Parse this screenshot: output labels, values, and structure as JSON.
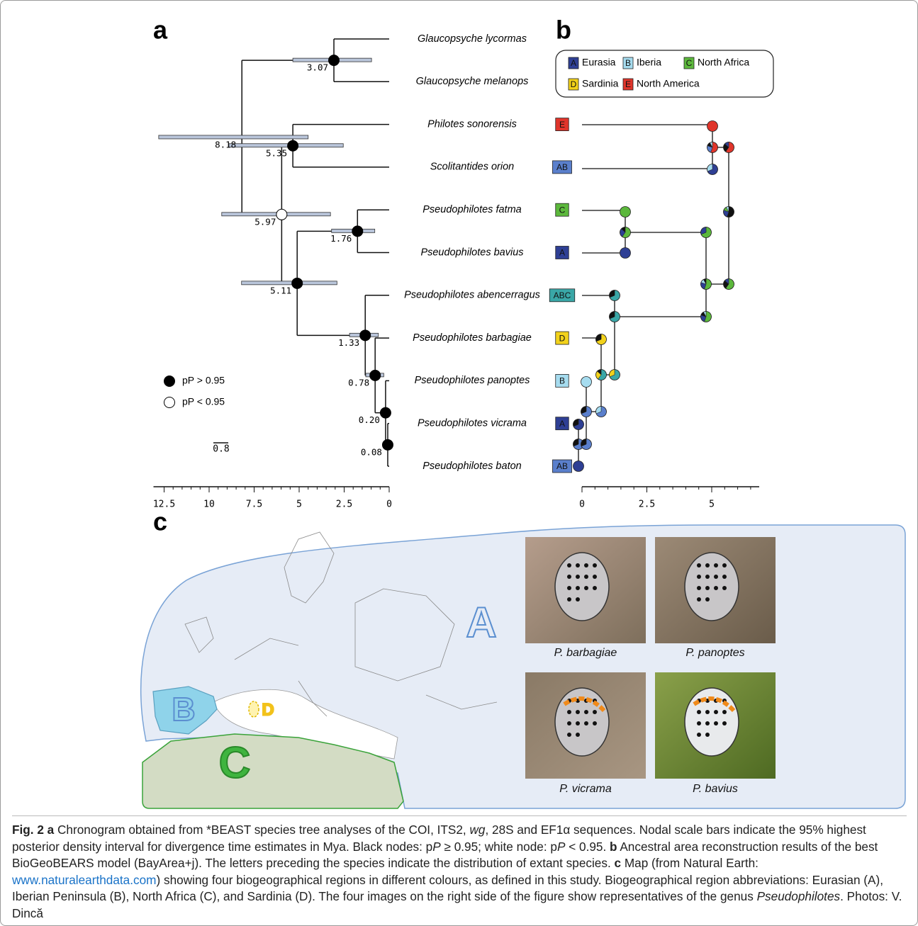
{
  "panel_labels": {
    "a": "a",
    "b": "b",
    "c": "c"
  },
  "tree": {
    "species": [
      "Glaucopsyche lycormas",
      "Glaucopsyche melanops",
      "Philotes sonorensis",
      "Scolitantides orion",
      "Pseudophilotes fatma",
      "Pseudophilotes bavius",
      "Pseudophilotes abencerragus",
      "Pseudophilotes barbagiae",
      "Pseudophilotes panoptes",
      "Pseudophilotes vicrama",
      "Pseudophilotes baton"
    ],
    "nodes": [
      {
        "age": 3.07,
        "hpd": [
          5.35,
          0.98
        ],
        "marker": "black"
      },
      {
        "age": 8.18,
        "hpd": [
          12.8,
          4.5
        ],
        "marker": null
      },
      {
        "age": 5.35,
        "hpd": [
          8.9,
          2.55
        ],
        "marker": "black"
      },
      {
        "age": 5.97,
        "hpd": [
          9.3,
          3.26
        ],
        "marker": "white"
      },
      {
        "age": 1.76,
        "hpd": [
          3.2,
          0.8
        ],
        "marker": "black"
      },
      {
        "age": 5.11,
        "hpd": [
          8.2,
          2.9
        ],
        "marker": "black"
      },
      {
        "age": 1.33,
        "hpd": [
          2.2,
          0.6
        ],
        "marker": "black"
      },
      {
        "age": 0.78,
        "hpd": [
          1.3,
          0.3
        ],
        "marker": "black"
      },
      {
        "age": {
          "value": 0.2,
          "label": "0.20"
        },
        "hpd": null,
        "marker": "black"
      },
      {
        "age": 0.08,
        "hpd": null,
        "marker": "black"
      }
    ],
    "xticks": [
      12.5,
      10,
      7.5,
      5,
      2.5,
      0
    ],
    "legend": [
      "pP > 0.95",
      "pP < 0.95"
    ],
    "scale_bar": "0.8"
  },
  "areas": {
    "legend": [
      {
        "code": "A",
        "name": "Eurasia",
        "color": "#2e3f94"
      },
      {
        "code": "B",
        "name": "Iberia",
        "color": "#a6dcef"
      },
      {
        "code": "C",
        "name": "North Africa",
        "color": "#5cb83c"
      },
      {
        "code": "D",
        "name": "Sardinia",
        "color": "#f2d21b"
      },
      {
        "code": "E",
        "name": "North America",
        "color": "#e0352b"
      }
    ],
    "species_codes": [
      null,
      null,
      "E",
      "AB",
      "C",
      "A",
      "ABC",
      "D",
      "B",
      "A",
      "AB"
    ],
    "code_colors": {
      "A": "#2e3f94",
      "B": "#a6dcef",
      "C": "#5cb83c",
      "D": "#f2d21b",
      "E": "#e0352b",
      "AB": "#5a7fcc",
      "ABC": "#3aa7a7"
    },
    "xticks": [
      0,
      2.5,
      5
    ]
  },
  "map": {
    "regions": [
      "A",
      "B",
      "C",
      "D"
    ],
    "photos": [
      "P. barbagiae",
      "P. panoptes",
      "P. vicrama",
      "P. bavius"
    ]
  },
  "caption": [
    "Fig. 2",
    "a",
    " Chronogram obtained from *BEAST species tree analyses of the COI, ITS2, ",
    "wg",
    ", 28S and EF1α sequences. Nodal scale bars indicate the 95% highest posterior density interval for divergence time estimates in Mya. Black nodes: p",
    "P",
    " ≥ 0.95; white node: p",
    "P",
    " < 0.95. ",
    "b",
    " Ancestral area reconstruction results of the best BioGeoBEARS model (BayArea+j). The letters preceding the species indicate the distribution of extant species. ",
    "c",
    " Map (from Natural Earth: ",
    "www.naturalearthdata.com",
    ") showing four biogeographical regions in different colours, as defined in this study. Biogeographical region abbreviations: Eurasian (A), Iberian Peninsula (B), North Africa (C), and Sardinia (D). The four images on the right side of the figure show representatives of the genus ",
    "Pseudophilotes",
    ". Photos: V. Dincă"
  ]
}
